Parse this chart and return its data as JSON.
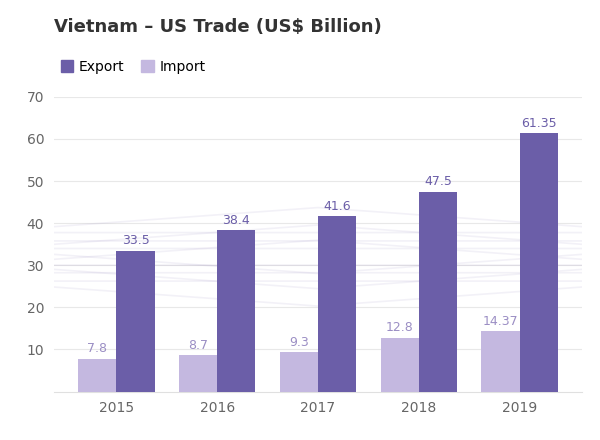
{
  "title": "Vietnam – US Trade (US$ Billion)",
  "years": [
    2015,
    2016,
    2017,
    2018,
    2019
  ],
  "export_values": [
    33.5,
    38.4,
    41.6,
    47.5,
    61.35
  ],
  "import_values": [
    7.8,
    8.7,
    9.3,
    12.8,
    14.37
  ],
  "export_color": "#6B5EA8",
  "import_color": "#C4B8E0",
  "background_color": "#FFFFFF",
  "ylim": [
    0,
    70
  ],
  "yticks": [
    10,
    20,
    30,
    40,
    50,
    60,
    70
  ],
  "bar_width": 0.38,
  "legend_export": "Export",
  "legend_import": "Import",
  "title_fontsize": 13,
  "tick_fontsize": 10,
  "value_fontsize": 9,
  "grid_color": "#E8E8E8",
  "spine_color": "#E0E0E0",
  "text_color": "#666666",
  "export_label_color": "#6B5EA8",
  "import_label_color": "#9B8EC4"
}
